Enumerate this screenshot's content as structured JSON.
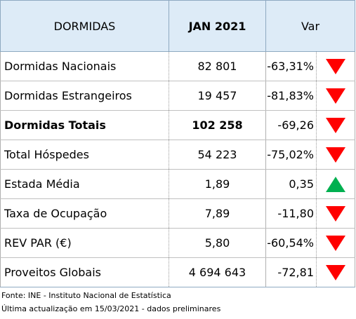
{
  "header": {
    "col_label": "DORMIDAS",
    "col_period": "JAN 2021",
    "col_var": "Var"
  },
  "rows": [
    {
      "label": "Dormidas Nacionais",
      "value": "82 801",
      "var": "-63,31%",
      "trend": "down",
      "bold": false
    },
    {
      "label": "Dormidas Estrangeiros",
      "value": "19 457",
      "var": "-81,83%",
      "trend": "down",
      "bold": false
    },
    {
      "label": "Dormidas Totais",
      "value": "102 258",
      "var": "-69,26",
      "trend": "down",
      "bold": true
    },
    {
      "label": "Total Hóspedes",
      "value": "54 223",
      "var": "-75,02%",
      "trend": "down",
      "bold": false
    },
    {
      "label": "Estada Média",
      "value": "1,89",
      "var": "0,35",
      "trend": "up",
      "bold": false
    },
    {
      "label": "Taxa de Ocupação",
      "value": "7,89",
      "var": "-11,80",
      "trend": "down",
      "bold": false
    },
    {
      "label": "REV PAR (€)",
      "value": "5,80",
      "var": "-60,54%",
      "trend": "down",
      "bold": false
    },
    {
      "label": "Proveitos Globais",
      "value": "4 694 643",
      "var": "-72,81",
      "trend": "down",
      "bold": false
    }
  ],
  "footnotes": {
    "source": "Fonte: INE - Instituto Nacional de Estatística",
    "updated": "Última actualização em 15/03/2021 - dados preliminares"
  },
  "colors": {
    "header_bg": "#ddebf7",
    "down_arrow": "#ff0000",
    "up_arrow": "#00b050"
  },
  "icons": {
    "down": "triangle-down-icon",
    "up": "triangle-up-icon"
  }
}
